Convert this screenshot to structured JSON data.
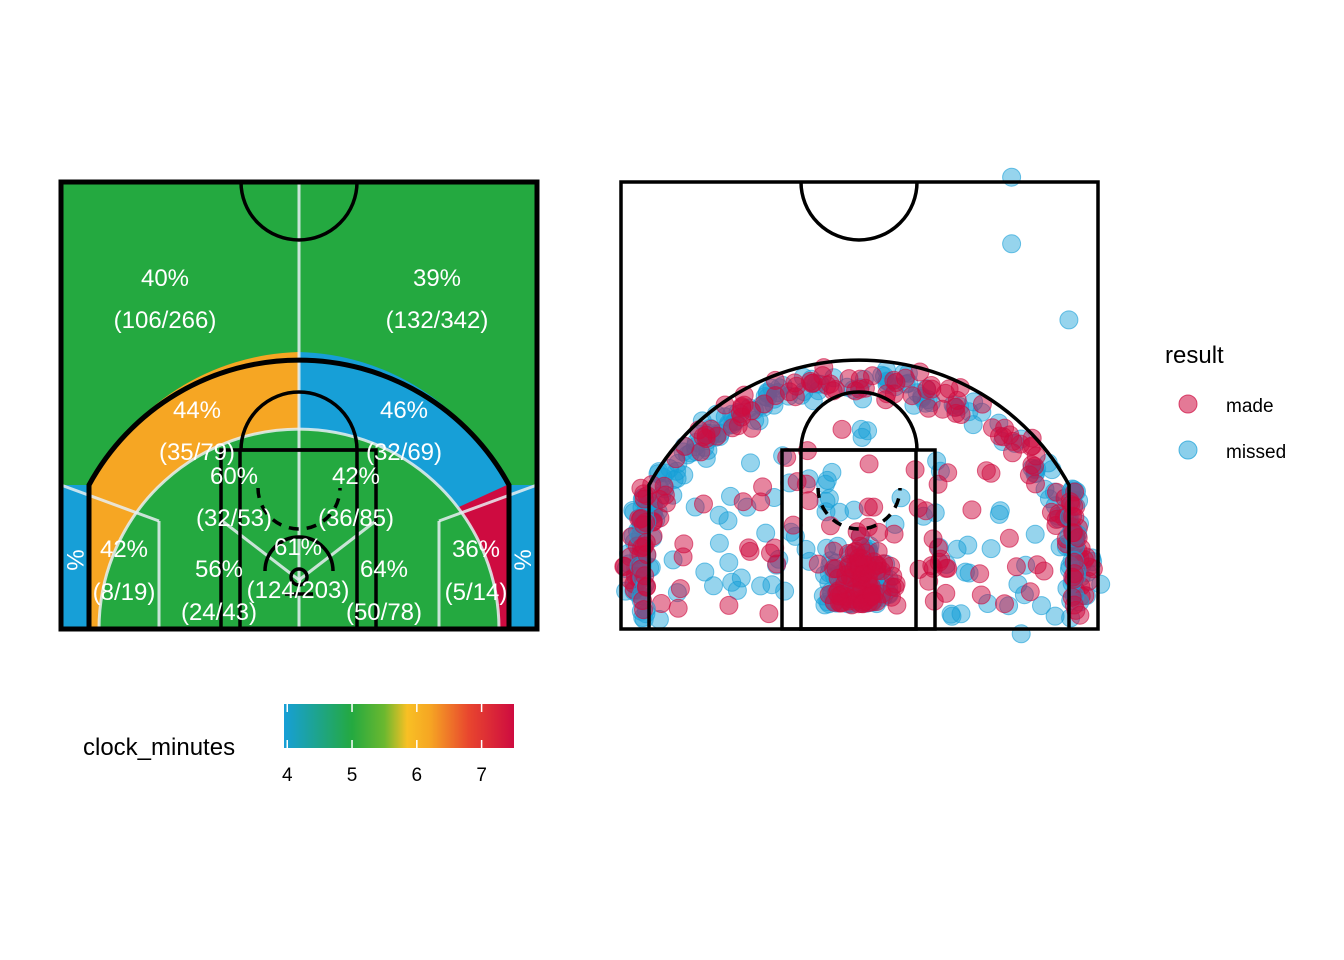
{
  "chart_data": [
    {
      "type": "heatmap",
      "name": "zone-heatmap",
      "zones": [
        {
          "id": "above-break-left",
          "pct": "40%",
          "count": "(106/266)",
          "color": "#24A940",
          "value": 5.0
        },
        {
          "id": "above-break-right",
          "pct": "39%",
          "count": "(132/342)",
          "color": "#24A940",
          "value": 5.0
        },
        {
          "id": "mid-left-wing",
          "pct": "44%",
          "count": "(35/79)",
          "color": "#F6A623",
          "value": 6.1
        },
        {
          "id": "mid-right-wing",
          "pct": "46%",
          "count": "(32/69)",
          "color": "#179FD7",
          "value": 4.2
        },
        {
          "id": "short-left",
          "pct": "60%",
          "count": "(32/53)",
          "color": "#24A940",
          "value": 5.0
        },
        {
          "id": "short-right",
          "pct": "42%",
          "count": "(36/85)",
          "color": "#24A940",
          "value": 5.0
        },
        {
          "id": "mid-left-baseline",
          "pct": "42%",
          "count": "(8/19)",
          "color": "#F6A623",
          "value": 6.1
        },
        {
          "id": "mid-right-baseline",
          "pct": "36%",
          "count": "(5/14)",
          "color": "#CE0B40",
          "value": 7.5
        },
        {
          "id": "paint-left",
          "pct": "56%",
          "count": "(24/43)",
          "color": "#24A940",
          "value": 5.0
        },
        {
          "id": "restricted",
          "pct": "61%",
          "count": "(124/203)",
          "color": "#24A940",
          "value": 5.0
        },
        {
          "id": "paint-right",
          "pct": "64%",
          "count": "(50/78)",
          "color": "#24A940",
          "value": 5.0
        },
        {
          "id": "corner-left",
          "pct": "",
          "count": "",
          "color": "#179FD7",
          "value": 4.0
        },
        {
          "id": "corner-right",
          "pct": "",
          "count": "",
          "color": "#179FD7",
          "value": 4.0
        }
      ],
      "legend": {
        "title": "clock_minutes",
        "ticks": [
          "4",
          "5",
          "6",
          "7"
        ],
        "tick_values": [
          4,
          5,
          6,
          7
        ],
        "range": [
          3.95,
          7.5
        ],
        "gradient_stops": [
          {
            "value": 3.95,
            "color": "#179FD7"
          },
          {
            "value": 5.0,
            "color": "#24A940"
          },
          {
            "value": 5.5,
            "color": "#6BB82F"
          },
          {
            "value": 5.85,
            "color": "#F8C024"
          },
          {
            "value": 6.2,
            "color": "#F6A623"
          },
          {
            "value": 6.8,
            "color": "#E8462E"
          },
          {
            "value": 7.5,
            "color": "#CE0B40"
          }
        ]
      }
    },
    {
      "type": "scatter",
      "name": "shot-chart",
      "legend": {
        "title": "result",
        "items": [
          {
            "label": "made",
            "color": "#CE0B40"
          },
          {
            "label": "missed",
            "color": "#179FD7"
          }
        ]
      },
      "x_range": [
        -25,
        25
      ],
      "y_range": [
        0,
        47
      ],
      "point_counts": {
        "made_arc": 130,
        "missed_arc": 170,
        "made_paint": 90,
        "missed_paint": 120,
        "made_mid": 55,
        "missed_mid": 70,
        "made_corner": 35,
        "missed_corner": 45
      },
      "outlier_points": [
        {
          "result": "missed",
          "x": 16,
          "y": 47.5
        },
        {
          "result": "missed",
          "x": 16,
          "y": 40.5
        },
        {
          "result": "missed",
          "x": 22,
          "y": 32.5
        },
        {
          "result": "missed",
          "x": 17,
          "y": -0.5
        }
      ]
    }
  ]
}
